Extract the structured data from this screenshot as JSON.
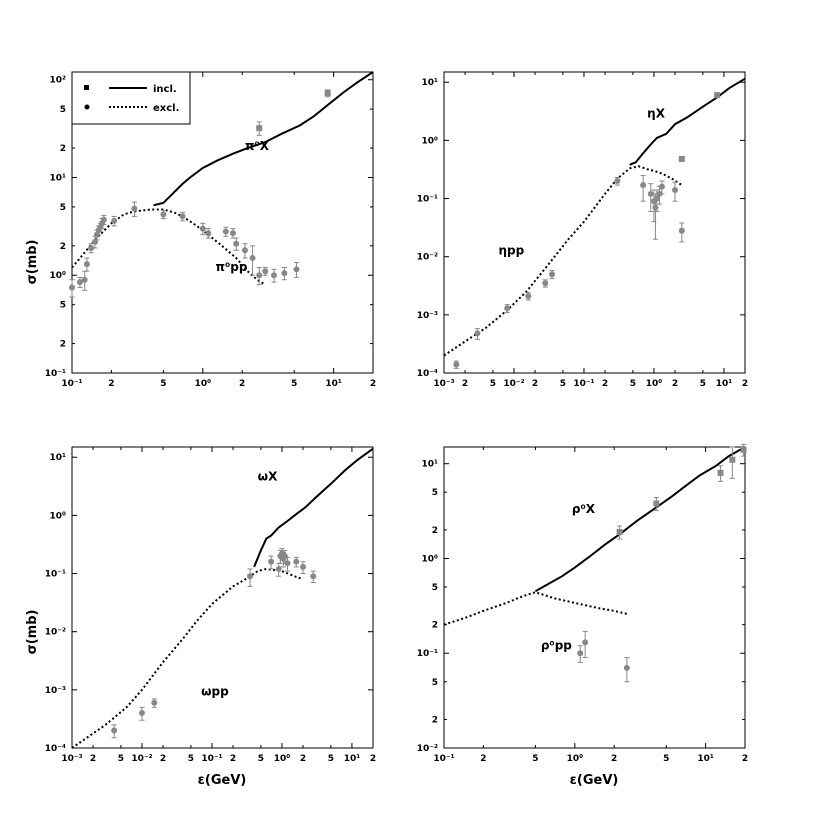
{
  "colors": {
    "curve": "#000000",
    "data_point": "#888888",
    "axis": "#000000",
    "background": "#ffffff"
  },
  "legend": {
    "placement": "top-left",
    "items": [
      {
        "label": "incl.",
        "marker": "square",
        "line": "solid"
      },
      {
        "label": "excl.",
        "marker": "circle",
        "line": "dotted"
      }
    ]
  },
  "chart_data": [
    {
      "type": "line",
      "xscale": "log",
      "yscale": "log",
      "xunit": "GeV",
      "xlim": [
        0.1,
        20
      ],
      "ylim": [
        0.1,
        120
      ],
      "xlabel": "",
      "ylabel": "σ(mb)",
      "xticks": [
        "10⁻¹",
        "2",
        "5",
        "10⁰",
        "2",
        "5",
        "10¹",
        "2"
      ],
      "yticks": [
        "10⁻¹",
        "2",
        "5",
        "10⁰",
        "2",
        "5",
        "10¹",
        "2",
        "5",
        "10²"
      ],
      "annotations": [
        {
          "text": "π⁰X",
          "x": 2.1,
          "y": 19
        },
        {
          "text": "π⁰pp",
          "x": 1.25,
          "y": 1.1
        }
      ],
      "series": [
        {
          "name": "incl.",
          "style": "solid",
          "x": [
            0.42,
            0.5,
            0.6,
            0.7,
            0.8,
            1.0,
            1.3,
            1.7,
            2.2,
            3,
            4,
            5.5,
            7,
            9,
            12,
            15,
            20
          ],
          "y": [
            5.2,
            5.5,
            7.0,
            8.6,
            10,
            12.5,
            15,
            17.5,
            20,
            23,
            28,
            34,
            42,
            55,
            75,
            93,
            120
          ]
        },
        {
          "name": "excl.",
          "style": "dotted",
          "x": [
            0.1,
            0.12,
            0.15,
            0.2,
            0.25,
            0.3,
            0.4,
            0.5,
            0.6,
            0.7,
            0.9,
            1.1,
            1.4,
            1.8,
            2.2,
            2.6,
            3.0
          ],
          "y": [
            1.2,
            1.6,
            2.3,
            3.4,
            4.2,
            4.5,
            4.7,
            4.7,
            4.4,
            4.0,
            3.2,
            2.6,
            2.0,
            1.5,
            1.1,
            0.9,
            0.8
          ]
        },
        {
          "name": "incl. data",
          "style": "squares",
          "x": [
            2.7,
            9.0
          ],
          "y": [
            32,
            73
          ],
          "err": [
            5,
            6
          ]
        },
        {
          "name": "excl. data",
          "style": "circles",
          "x": [
            0.1,
            0.115,
            0.125,
            0.13,
            0.14,
            0.15,
            0.155,
            0.16,
            0.165,
            0.17,
            0.175,
            0.21,
            0.3,
            0.5,
            0.7,
            1.0,
            1.1,
            1.5,
            1.7,
            1.8,
            2.1,
            2.4,
            2.7,
            3.0,
            3.5,
            4.2,
            5.2
          ],
          "y": [
            0.75,
            0.85,
            0.9,
            1.3,
            1.9,
            2.2,
            2.6,
            2.9,
            3.1,
            3.4,
            3.7,
            3.6,
            4.8,
            4.2,
            4.0,
            3.0,
            2.7,
            2.8,
            2.7,
            2.1,
            1.8,
            1.5,
            1.0,
            1.1,
            1.0,
            1.05,
            1.15
          ],
          "err": [
            0.15,
            0.1,
            0.2,
            0.2,
            0.2,
            0.3,
            0.3,
            0.3,
            0.3,
            0.4,
            0.4,
            0.4,
            0.8,
            0.4,
            0.4,
            0.4,
            0.3,
            0.3,
            0.3,
            0.3,
            0.3,
            0.5,
            0.2,
            0.1,
            0.15,
            0.15,
            0.2
          ]
        }
      ]
    },
    {
      "type": "line",
      "xscale": "log",
      "yscale": "log",
      "xunit": "GeV",
      "xlim": [
        0.001,
        20
      ],
      "ylim": [
        0.0001,
        15
      ],
      "xlabel": "",
      "ylabel": "",
      "xticks": [
        "10⁻³",
        "2",
        "5",
        "10⁻²",
        "2",
        "5",
        "10⁻¹",
        "2",
        "5",
        "10⁰",
        "2",
        "5",
        "10¹",
        "2"
      ],
      "yticks": [
        "10⁻⁴",
        "10⁻³",
        "10⁻²",
        "10⁻¹",
        "10⁰",
        "10¹"
      ],
      "annotations": [
        {
          "text": "ηX",
          "x": 0.8,
          "y": 2.5
        },
        {
          "text": "ηpp",
          "x": 0.006,
          "y": 0.011
        }
      ],
      "series": [
        {
          "name": "incl.",
          "style": "solid",
          "x": [
            0.45,
            0.55,
            0.7,
            0.9,
            1.1,
            1.5,
            2,
            3,
            5,
            8,
            12,
            20
          ],
          "y": [
            0.38,
            0.42,
            0.6,
            0.85,
            1.1,
            1.3,
            1.9,
            2.5,
            3.8,
            5.5,
            8,
            11.5
          ]
        },
        {
          "name": "excl.",
          "style": "dotted",
          "x": [
            0.001,
            0.002,
            0.004,
            0.008,
            0.015,
            0.03,
            0.06,
            0.1,
            0.2,
            0.3,
            0.45,
            0.6,
            0.8,
            1.0,
            1.3,
            1.8,
            2.5
          ],
          "y": [
            0.0002,
            0.00035,
            0.0006,
            0.0012,
            0.0025,
            0.007,
            0.02,
            0.04,
            0.12,
            0.22,
            0.33,
            0.36,
            0.32,
            0.3,
            0.27,
            0.22,
            0.17
          ]
        },
        {
          "name": "incl. data",
          "style": "squares",
          "x": [
            2.5,
            8.0
          ],
          "y": [
            0.48,
            6.0
          ]
        },
        {
          "name": "excl. data",
          "style": "circles",
          "x": [
            0.0015,
            0.003,
            0.008,
            0.016,
            0.028,
            0.035,
            0.3,
            0.7,
            0.9,
            1.0,
            1.05,
            1.1,
            1.2,
            1.3,
            2.0,
            2.5
          ],
          "y": [
            0.00014,
            0.00048,
            0.0013,
            0.0021,
            0.0035,
            0.005,
            0.2,
            0.17,
            0.12,
            0.09,
            0.07,
            0.1,
            0.12,
            0.16,
            0.14,
            0.028
          ],
          "err": [
            2e-05,
            0.0001,
            0.0002,
            0.0003,
            0.0005,
            0.0008,
            0.03,
            0.08,
            0.06,
            0.05,
            0.05,
            0.04,
            0.04,
            0.04,
            0.05,
            0.01
          ]
        }
      ]
    },
    {
      "type": "line",
      "xscale": "log",
      "yscale": "log",
      "xunit": "GeV",
      "xlim": [
        0.001,
        20
      ],
      "ylim": [
        0.0001,
        15
      ],
      "xlabel": "ε(GeV)",
      "ylabel": "σ(mb)",
      "xticks": [
        "10⁻³",
        "2",
        "5",
        "10⁻²",
        "2",
        "5",
        "10⁻¹",
        "2",
        "5",
        "10⁰",
        "2",
        "5",
        "10¹",
        "2"
      ],
      "yticks": [
        "10⁻⁴",
        "10⁻³",
        "10⁻²",
        "10⁻¹",
        "10⁰",
        "10¹"
      ],
      "annotations": [
        {
          "text": "ωX",
          "x": 0.45,
          "y": 4.0
        },
        {
          "text": "ωpp",
          "x": 0.07,
          "y": 0.0008
        }
      ],
      "series": [
        {
          "name": "incl.",
          "style": "solid",
          "x": [
            0.4,
            0.5,
            0.6,
            0.7,
            0.9,
            1.2,
            1.6,
            2.2,
            3,
            5,
            8,
            12,
            20
          ],
          "y": [
            0.13,
            0.25,
            0.4,
            0.45,
            0.62,
            0.8,
            1.05,
            1.4,
            2.0,
            3.5,
            6,
            9,
            14
          ]
        },
        {
          "name": "excl.",
          "style": "dotted",
          "x": [
            0.001,
            0.003,
            0.006,
            0.01,
            0.02,
            0.04,
            0.06,
            0.1,
            0.2,
            0.3,
            0.45,
            0.6,
            1.0,
            1.5,
            2.0
          ],
          "y": [
            0.0001,
            0.00025,
            0.0005,
            0.001,
            0.003,
            0.008,
            0.015,
            0.03,
            0.06,
            0.08,
            0.11,
            0.12,
            0.11,
            0.09,
            0.08
          ]
        },
        {
          "name": "excl. data",
          "style": "circles",
          "x": [
            0.004,
            0.01,
            0.015,
            0.35,
            0.7,
            0.9,
            0.95,
            1.0,
            1.05,
            1.1,
            1.2,
            1.6,
            2.0,
            2.8
          ],
          "y": [
            0.0002,
            0.0004,
            0.0006,
            0.09,
            0.16,
            0.12,
            0.2,
            0.22,
            0.18,
            0.2,
            0.15,
            0.16,
            0.13,
            0.09
          ],
          "err": [
            5e-05,
            0.0001,
            0.0001,
            0.03,
            0.04,
            0.03,
            0.05,
            0.05,
            0.05,
            0.05,
            0.04,
            0.03,
            0.03,
            0.02
          ]
        }
      ]
    },
    {
      "type": "line",
      "xscale": "log",
      "yscale": "log",
      "xunit": "GeV",
      "xlim": [
        0.1,
        20
      ],
      "ylim": [
        0.01,
        15
      ],
      "xlabel": "ε(GeV)",
      "ylabel": "",
      "xticks": [
        "10⁻¹",
        "2",
        "5",
        "10⁰",
        "2",
        "5",
        "10¹",
        "2"
      ],
      "yticks": [
        "10⁻²",
        "2",
        "5",
        "10⁻¹",
        "2",
        "5",
        "10⁰",
        "2",
        "5",
        "10¹"
      ],
      "annotations": [
        {
          "text": "ρ⁰X",
          "x": 0.95,
          "y": 3.0
        },
        {
          "text": "ρ⁰pp",
          "x": 0.55,
          "y": 0.11
        }
      ],
      "series": [
        {
          "name": "incl.",
          "style": "solid",
          "x": [
            0.5,
            0.6,
            0.8,
            1.0,
            1.3,
            1.7,
            2.2,
            3,
            4,
            5.5,
            7,
            9,
            12,
            15,
            20
          ],
          "y": [
            0.45,
            0.52,
            0.65,
            0.8,
            1.05,
            1.4,
            1.8,
            2.5,
            3.3,
            4.5,
            5.8,
            7.5,
            9.5,
            12,
            15
          ]
        },
        {
          "name": "excl.",
          "style": "dotted",
          "x": [
            0.1,
            0.15,
            0.2,
            0.3,
            0.4,
            0.5,
            0.7,
            1.0,
            1.5,
            2.0,
            2.5
          ],
          "y": [
            0.2,
            0.24,
            0.28,
            0.34,
            0.4,
            0.44,
            0.38,
            0.34,
            0.3,
            0.28,
            0.26
          ]
        },
        {
          "name": "incl. data",
          "style": "squares",
          "x": [
            2.2,
            4.2,
            13,
            16,
            19.5
          ],
          "y": [
            1.9,
            3.8,
            8.0,
            11,
            14
          ],
          "err": [
            0.3,
            0.6,
            1.5,
            4,
            2
          ]
        },
        {
          "name": "excl. data",
          "style": "circles",
          "x": [
            1.1,
            1.2,
            2.5
          ],
          "y": [
            0.1,
            0.13,
            0.07
          ],
          "err": [
            0.02,
            0.04,
            0.02
          ]
        }
      ]
    }
  ]
}
